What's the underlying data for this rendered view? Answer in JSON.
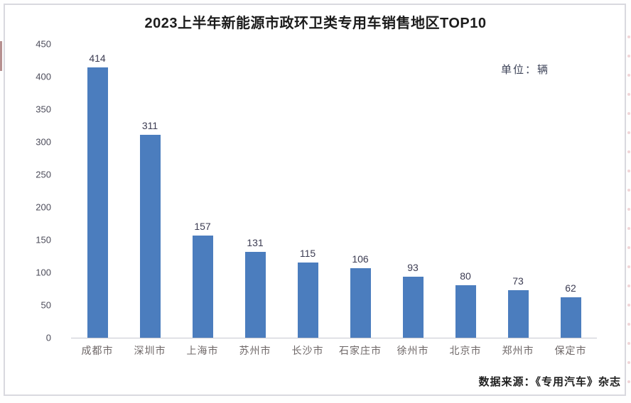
{
  "page": {
    "source_note": "数据来源：《专用汽车》杂志"
  },
  "chart_data": {
    "type": "bar",
    "title": "2023上半年新能源市政环卫类专用车销售地区TOP10",
    "unit_label": "单位：辆",
    "categories": [
      "成都市",
      "深圳市",
      "上海市",
      "苏州市",
      "长沙市",
      "石家庄市",
      "徐州市",
      "北京市",
      "郑州市",
      "保定市"
    ],
    "values": [
      414,
      311,
      157,
      131,
      115,
      106,
      93,
      80,
      73,
      62
    ],
    "xlabel": "",
    "ylabel": "",
    "ylim": [
      0,
      450
    ],
    "yticks": [
      0,
      50,
      100,
      150,
      200,
      250,
      300,
      350,
      400,
      450
    ],
    "bar_color": "#4b7dbe",
    "grid": false,
    "legend": false
  }
}
